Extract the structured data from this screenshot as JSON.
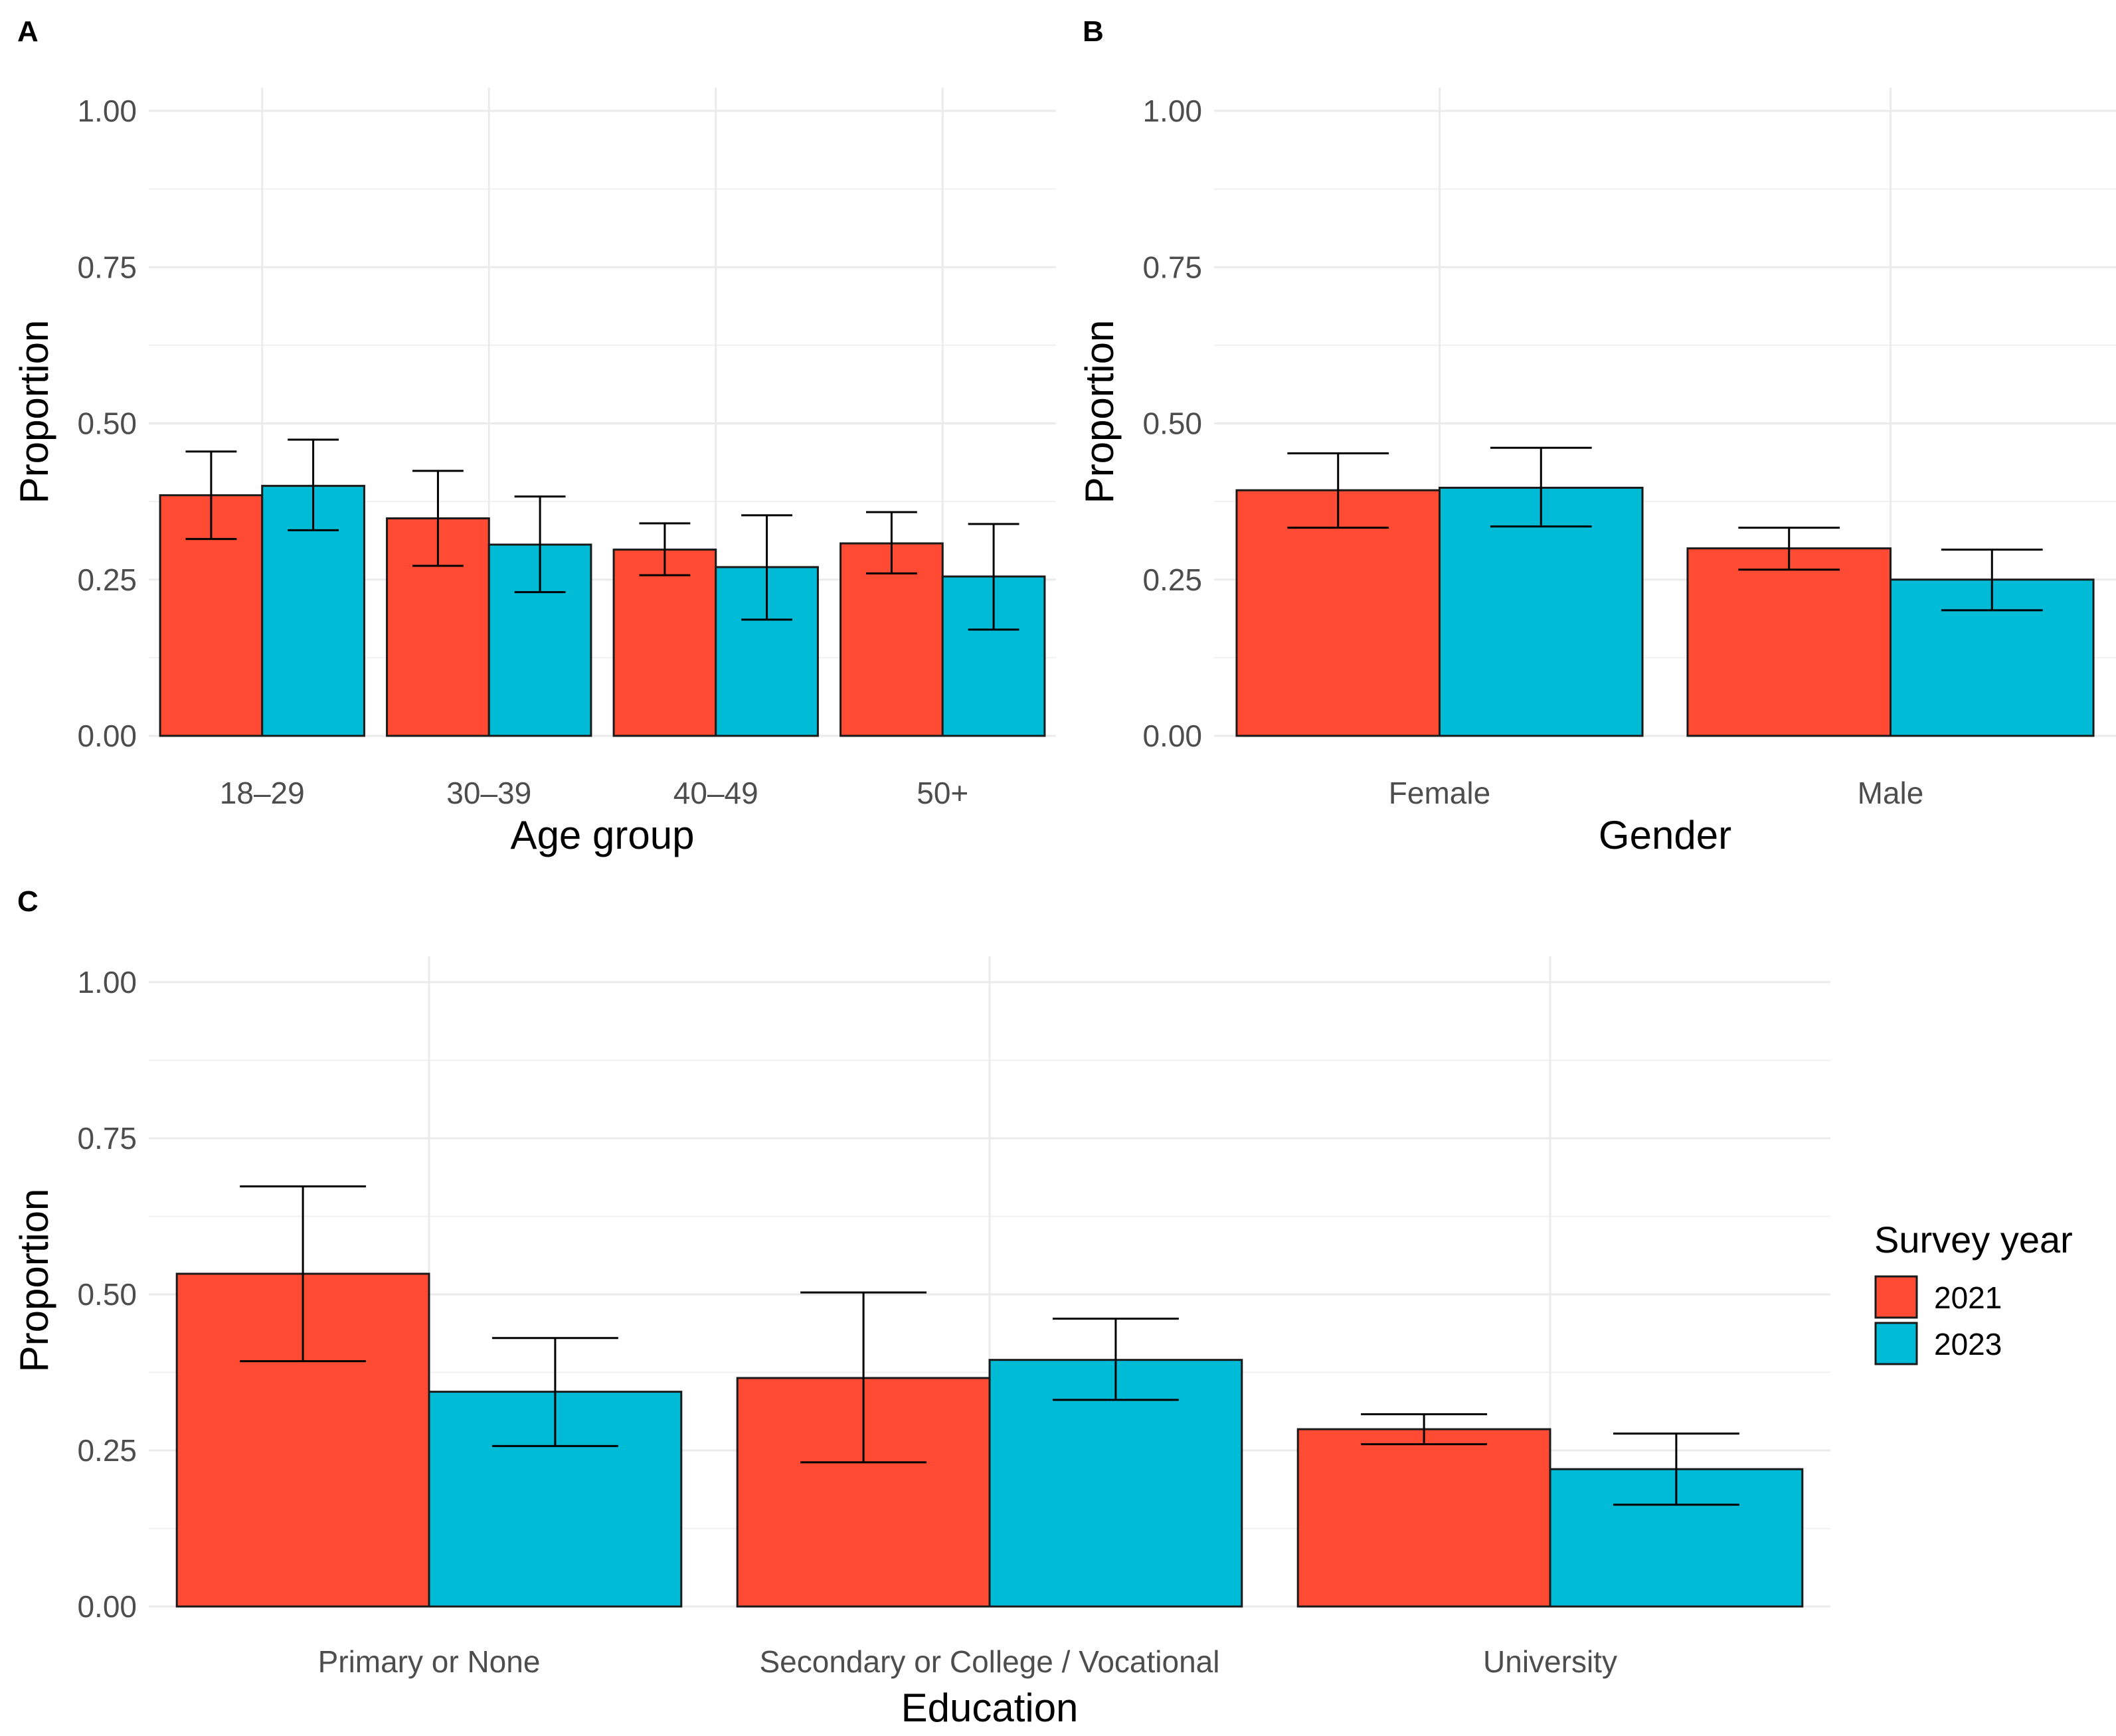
{
  "figure_panels": {
    "A": {
      "letter": "A"
    },
    "B": {
      "letter": "B"
    },
    "C": {
      "letter": "C"
    }
  },
  "legend": {
    "title": "Survey year",
    "entries": [
      {
        "label": "2021",
        "color": "#FF4B33"
      },
      {
        "label": "2023",
        "color": "#00BBD6"
      }
    ]
  },
  "chart_data": [
    {
      "panel": "A",
      "type": "bar",
      "categories": [
        "18–29",
        "30–39",
        "40–49",
        "50+"
      ],
      "series": [
        {
          "name": "2021",
          "color": "#FF4B33",
          "values": [
            0.385,
            0.348,
            0.298,
            0.308
          ],
          "lower": [
            0.315,
            0.272,
            0.257,
            0.26
          ],
          "upper": [
            0.455,
            0.424,
            0.34,
            0.358
          ]
        },
        {
          "name": "2023",
          "color": "#00BBD6",
          "values": [
            0.4,
            0.306,
            0.27,
            0.255
          ],
          "lower": [
            0.329,
            0.23,
            0.186,
            0.17
          ],
          "upper": [
            0.474,
            0.383,
            0.353,
            0.339
          ]
        }
      ],
      "xlabel": "Age group",
      "ylabel": "Proportion",
      "ylim": [
        0,
        1
      ],
      "yticks": [
        "0.00",
        "0.25",
        "0.50",
        "0.75",
        "1.00"
      ],
      "grid": true
    },
    {
      "panel": "B",
      "type": "bar",
      "categories": [
        "Female",
        "Male"
      ],
      "series": [
        {
          "name": "2021",
          "color": "#FF4B33",
          "values": [
            0.393,
            0.3
          ],
          "lower": [
            0.333,
            0.266
          ],
          "upper": [
            0.452,
            0.333
          ]
        },
        {
          "name": "2023",
          "color": "#00BBD6",
          "values": [
            0.397,
            0.25
          ],
          "lower": [
            0.335,
            0.201
          ],
          "upper": [
            0.461,
            0.298
          ]
        }
      ],
      "xlabel": "Gender",
      "ylabel": "Proportion",
      "ylim": [
        0,
        1
      ],
      "yticks": [
        "0.00",
        "0.25",
        "0.50",
        "0.75",
        "1.00"
      ],
      "grid": true
    },
    {
      "panel": "C",
      "type": "bar",
      "categories": [
        "Primary or None",
        "Secondary or College / Vocational",
        "University"
      ],
      "series": [
        {
          "name": "2021",
          "color": "#FF4B33",
          "values": [
            0.533,
            0.366,
            0.284
          ],
          "lower": [
            0.393,
            0.231,
            0.26
          ],
          "upper": [
            0.673,
            0.503,
            0.308
          ]
        },
        {
          "name": "2023",
          "color": "#00BBD6",
          "values": [
            0.344,
            0.395,
            0.22
          ],
          "lower": [
            0.257,
            0.331,
            0.163
          ],
          "upper": [
            0.43,
            0.461,
            0.277
          ]
        }
      ],
      "xlabel": "Education",
      "ylabel": "Proportion",
      "ylim": [
        0,
        1
      ],
      "yticks": [
        "0.00",
        "0.25",
        "0.50",
        "0.75",
        "1.00"
      ],
      "grid": true
    }
  ]
}
